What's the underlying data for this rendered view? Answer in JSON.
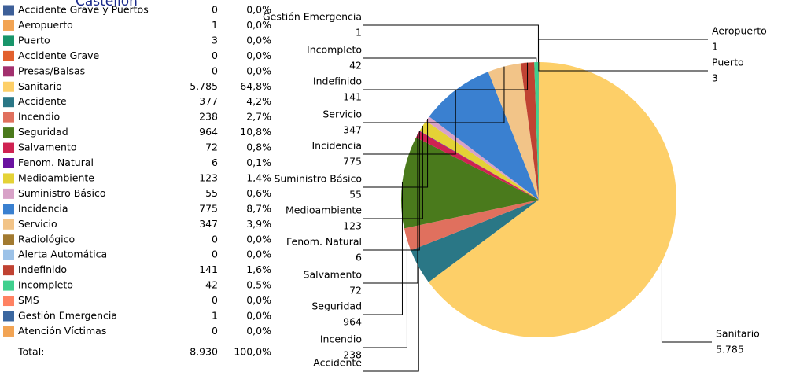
{
  "chart_data": {
    "type": "pie",
    "title": "Castellón",
    "categories": [
      "Accidente Grave y Puertos",
      "Aeropuerto",
      "Puerto",
      "Accidente Grave",
      "Presas/Balsas",
      "Sanitario",
      "Accidente",
      "Incendio",
      "Seguridad",
      "Salvamento",
      "Fenom. Natural",
      "Medioambiente",
      "Suministro Básico",
      "Incidencia",
      "Servicio",
      "Radiológico",
      "Alerta Automática",
      "Indefinido",
      "Incompleto",
      "SMS",
      "Gestión Emergencia",
      "Atención Víctimas"
    ],
    "values": [
      0,
      1,
      3,
      0,
      0,
      5785,
      377,
      238,
      964,
      72,
      6,
      123,
      55,
      775,
      347,
      0,
      0,
      141,
      42,
      0,
      1,
      0
    ],
    "value_labels": [
      "0",
      "1",
      "3",
      "0",
      "0",
      "5.785",
      "377",
      "238",
      "964",
      "72",
      "6",
      "123",
      "55",
      "775",
      "347",
      "0",
      "0",
      "141",
      "42",
      "0",
      "1",
      "0"
    ],
    "percentages": [
      0,
      0,
      0,
      0,
      0,
      64.8,
      4.2,
      2.7,
      10.8,
      0.8,
      0.1,
      1.4,
      0.6,
      8.7,
      3.9,
      0,
      0,
      1.6,
      0.5,
      0,
      0,
      0
    ],
    "percentage_labels": [
      "0,0%",
      "0,0%",
      "0,0%",
      "0,0%",
      "0,0%",
      "64,8%",
      "4,2%",
      "2,7%",
      "10,8%",
      "0,8%",
      "0,1%",
      "1,4%",
      "0,6%",
      "8,7%",
      "3,9%",
      "0,0%",
      "0,0%",
      "1,6%",
      "0,5%",
      "0,0%",
      "0,0%",
      "0,0%"
    ],
    "colors": [
      "#3d5f98",
      "#f2a454",
      "#18956a",
      "#e2602e",
      "#a2306e",
      "#fdcf68",
      "#2a7786",
      "#e0705e",
      "#4a7a1c",
      "#cf2252",
      "#6a12a0",
      "#e4d236",
      "#d8a2c8",
      "#3a80d0",
      "#f2c488",
      "#a27a30",
      "#9cc2e8",
      "#c04232",
      "#40d08e",
      "#ff8262",
      "#3b67a0",
      "#f2a454"
    ],
    "total_label": "Total:",
    "total": 8930,
    "total_value_label": "8.930",
    "total_percentage": 100,
    "total_percentage_label": "100,0%"
  }
}
